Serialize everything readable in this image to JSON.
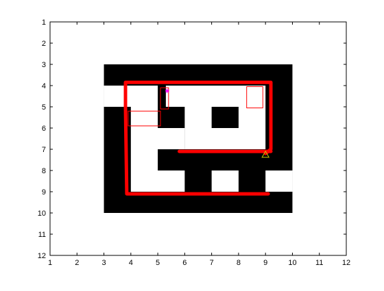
{
  "chart_data": {
    "type": "line",
    "title": "",
    "xlabel": "",
    "ylabel": "",
    "xlim": [
      1,
      12
    ],
    "ylim": [
      1,
      12
    ],
    "y_reversed": true,
    "grid": false,
    "x_ticks": [
      "1",
      "2",
      "3",
      "4",
      "5",
      "6",
      "7",
      "8",
      "9",
      "10",
      "11",
      "12"
    ],
    "y_ticks": [
      "1",
      "2",
      "3",
      "4",
      "5",
      "6",
      "7",
      "8",
      "9",
      "10",
      "11",
      "12"
    ],
    "maze_walls_color": "#000000",
    "maze_open_color": "#ffffff",
    "maze_walls": [
      {
        "x0": 3,
        "x1": 10,
        "y0": 3,
        "y1": 10
      }
    ],
    "maze_open_cells": [
      {
        "x0": 3,
        "x1": 5,
        "y0": 4,
        "y1": 5
      },
      {
        "x0": 5.3,
        "x1": 9,
        "y0": 4,
        "y1": 5
      },
      {
        "x0": 4,
        "x1": 5,
        "y0": 5,
        "y1": 6
      },
      {
        "x0": 6,
        "x1": 7,
        "y0": 5,
        "y1": 6
      },
      {
        "x0": 8,
        "x1": 9,
        "y0": 5,
        "y1": 6
      },
      {
        "x0": 6,
        "x1": 9,
        "y0": 6,
        "y1": 7
      },
      {
        "x0": 4,
        "x1": 6,
        "y0": 6,
        "y1": 7
      },
      {
        "x0": 4,
        "x1": 5,
        "y0": 7,
        "y1": 8
      },
      {
        "x0": 4,
        "x1": 6,
        "y0": 8,
        "y1": 9
      },
      {
        "x0": 7,
        "x1": 8,
        "y0": 8,
        "y1": 9
      },
      {
        "x0": 9,
        "x1": 10,
        "y0": 8,
        "y1": 9
      }
    ],
    "series": [
      {
        "color": "#ff0000",
        "line_width": 5,
        "x": [
          9.0,
          9.2,
          9.2,
          3.8,
          3.8,
          3.85,
          9.1
        ],
        "y": [
          7.2,
          7.0,
          3.85,
          3.85,
          5.0,
          9.1,
          9.1
        ]
      },
      {
        "color": "#ff0000",
        "line_width": 5,
        "x": [
          5.8,
          9.2
        ],
        "y": [
          7.1,
          7.1
        ]
      },
      {
        "color": "#ff0000",
        "line_width": 1,
        "x": [
          3.9,
          5.1,
          5.1,
          3.9,
          3.9
        ],
        "y": [
          5.2,
          5.2,
          5.9,
          5.9,
          5.2
        ]
      },
      {
        "color": "#ff0000",
        "line_width": 1,
        "x": [
          5.1,
          5.4,
          5.4,
          5.1,
          5.1
        ],
        "y": [
          4.1,
          4.1,
          5.1,
          5.1,
          4.1
        ]
      },
      {
        "color": "#ff0000",
        "line_width": 1,
        "x": [
          8.3,
          8.9,
          8.9,
          8.3,
          8.3
        ],
        "y": [
          4.05,
          4.05,
          5.05,
          5.05,
          4.05
        ]
      }
    ],
    "markers": [
      {
        "shape": "triangle",
        "x": 9.0,
        "y": 7.25,
        "color": "#cccc00"
      },
      {
        "shape": "star",
        "x": 5.35,
        "y": 4.25,
        "color": "#ff00ff"
      }
    ]
  }
}
